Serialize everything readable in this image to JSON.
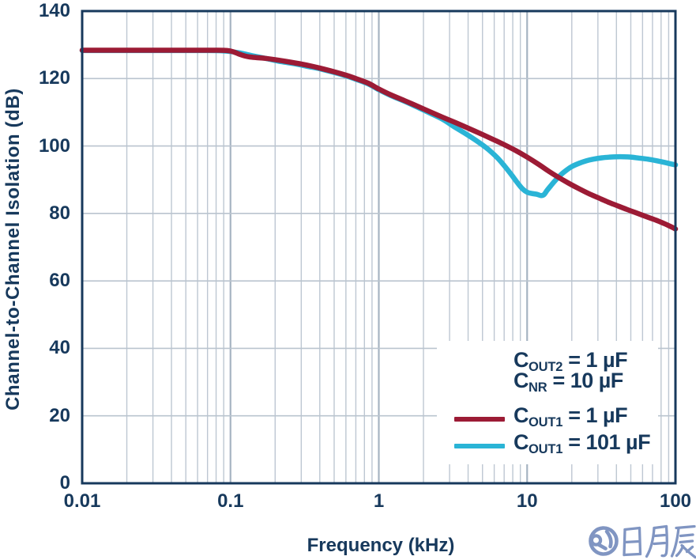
{
  "colors": {
    "background": "#ffffff",
    "axis_frame": "#17395c",
    "text": "#17395c",
    "grid_minor": "#bdc7d2",
    "grid_major": "#a6b4c2",
    "grid_horizontal": "#bac4cf",
    "legend_background": "#ffffff",
    "watermark": "#8095c2"
  },
  "chart_data": {
    "type": "line",
    "title": "",
    "xlabel": "Frequency (kHz)",
    "ylabel": "Channel-to-Channel Isolation (dB)",
    "x_scale": "log",
    "xlim": [
      0.01,
      100
    ],
    "ylim": [
      0,
      140
    ],
    "grid": {
      "x_minor_multiples": [
        2,
        3,
        4,
        5,
        6,
        7,
        8,
        9
      ],
      "x_major_decades": [
        0.1,
        1,
        10
      ],
      "y_major_step": 20
    },
    "legend_position": "lower right",
    "x_ticks": [
      {
        "v": 0.01,
        "label": "0.01"
      },
      {
        "v": 0.1,
        "label": "0.1"
      },
      {
        "v": 1,
        "label": "1"
      },
      {
        "v": 10,
        "label": "10"
      },
      {
        "v": 100,
        "label": "100"
      }
    ],
    "y_ticks": [
      {
        "v": 0,
        "label": "0"
      },
      {
        "v": 20,
        "label": "20"
      },
      {
        "v": 40,
        "label": "40"
      },
      {
        "v": 60,
        "label": "60"
      },
      {
        "v": 80,
        "label": "80"
      },
      {
        "v": 100,
        "label": "100"
      },
      {
        "v": 120,
        "label": "120"
      },
      {
        "v": 140,
        "label": "140"
      }
    ],
    "series": [
      {
        "id": "cout1-1uf",
        "label": "C_OUT1 = 1 µF",
        "color": "#9c1b35",
        "line_width": 6.5,
        "points": [
          [
            0.01,
            128.4
          ],
          [
            0.03,
            128.4
          ],
          [
            0.06,
            128.4
          ],
          [
            0.08,
            128.4
          ],
          [
            0.095,
            128.3
          ],
          [
            0.105,
            127.9
          ],
          [
            0.115,
            127.2
          ],
          [
            0.125,
            126.7
          ],
          [
            0.135,
            126.4
          ],
          [
            0.15,
            126.2
          ],
          [
            0.17,
            126.0
          ],
          [
            0.2,
            125.6
          ],
          [
            0.25,
            124.9
          ],
          [
            0.3,
            124.3
          ],
          [
            0.35,
            123.7
          ],
          [
            0.4,
            123.1
          ],
          [
            0.5,
            122.0
          ],
          [
            0.6,
            121.0
          ],
          [
            0.7,
            120.0
          ],
          [
            0.85,
            118.6
          ],
          [
            1.0,
            116.9
          ],
          [
            1.2,
            115.2
          ],
          [
            1.5,
            113.4
          ],
          [
            1.8,
            111.9
          ],
          [
            2.2,
            110.2
          ],
          [
            2.7,
            108.5
          ],
          [
            3.3,
            106.9
          ],
          [
            4.0,
            105.3
          ],
          [
            5.0,
            103.4
          ],
          [
            6.0,
            101.8
          ],
          [
            7.0,
            100.4
          ],
          [
            8.5,
            98.5
          ],
          [
            10,
            96.7
          ],
          [
            12,
            94.5
          ],
          [
            14,
            92.5
          ],
          [
            16,
            90.9
          ],
          [
            19,
            89.0
          ],
          [
            22,
            87.5
          ],
          [
            26,
            85.9
          ],
          [
            30,
            84.7
          ],
          [
            35,
            83.4
          ],
          [
            40,
            82.4
          ],
          [
            47,
            81.2
          ],
          [
            55,
            80.1
          ],
          [
            65,
            78.9
          ],
          [
            75,
            77.9
          ],
          [
            85,
            76.9
          ],
          [
            92,
            76.2
          ],
          [
            100,
            75.4
          ]
        ]
      },
      {
        "id": "cout1-101uf",
        "label": "C_OUT1 = 101 µF",
        "color": "#2ab4d6",
        "line_width": 6.5,
        "points": [
          [
            0.01,
            128.3
          ],
          [
            0.04,
            128.3
          ],
          [
            0.07,
            128.3
          ],
          [
            0.09,
            128.2
          ],
          [
            0.1,
            128.0
          ],
          [
            0.115,
            127.6
          ],
          [
            0.13,
            127.1
          ],
          [
            0.15,
            126.5
          ],
          [
            0.18,
            125.8
          ],
          [
            0.22,
            125.0
          ],
          [
            0.27,
            124.4
          ],
          [
            0.33,
            123.6
          ],
          [
            0.4,
            122.9
          ],
          [
            0.5,
            121.8
          ],
          [
            0.6,
            120.8
          ],
          [
            0.7,
            119.8
          ],
          [
            0.85,
            118.4
          ],
          [
            1.0,
            116.7
          ],
          [
            1.2,
            115.0
          ],
          [
            1.5,
            113.2
          ],
          [
            1.8,
            111.6
          ],
          [
            2.2,
            109.8
          ],
          [
            2.7,
            107.9
          ],
          [
            3.2,
            105.8
          ],
          [
            3.8,
            103.8
          ],
          [
            4.4,
            102.0
          ],
          [
            5.0,
            100.3
          ],
          [
            5.6,
            98.6
          ],
          [
            6.3,
            96.5
          ],
          [
            7.0,
            94.2
          ],
          [
            7.8,
            91.6
          ],
          [
            8.6,
            89.1
          ],
          [
            9.3,
            87.3
          ],
          [
            10.0,
            86.3
          ],
          [
            10.8,
            85.9
          ],
          [
            11.6,
            85.7
          ],
          [
            12.4,
            85.3
          ],
          [
            13.0,
            85.6
          ],
          [
            13.6,
            86.8
          ],
          [
            14.5,
            88.3
          ],
          [
            15.5,
            89.8
          ],
          [
            17,
            91.6
          ],
          [
            18.5,
            92.9
          ],
          [
            20,
            93.9
          ],
          [
            22.5,
            94.9
          ],
          [
            25,
            95.6
          ],
          [
            28,
            96.1
          ],
          [
            32,
            96.5
          ],
          [
            36,
            96.7
          ],
          [
            40,
            96.8
          ],
          [
            45,
            96.8
          ],
          [
            50,
            96.7
          ],
          [
            57,
            96.4
          ],
          [
            65,
            96.1
          ],
          [
            75,
            95.6
          ],
          [
            85,
            95.1
          ],
          [
            93,
            94.7
          ],
          [
            100,
            94.4
          ]
        ]
      }
    ]
  },
  "legend": {
    "annotations": [
      {
        "main": "C",
        "sub": "OUT2",
        "rest": " = 1 µF"
      },
      {
        "main": "C",
        "sub": "NR",
        "rest": " = 10 µF"
      }
    ],
    "entries": [
      {
        "main": "C",
        "sub": "OUT1",
        "rest": " = 1 µF",
        "series": "cout1-1uf"
      },
      {
        "main": "C",
        "sub": "OUT1",
        "rest": " = 101 µF",
        "series": "cout1-101uf"
      }
    ]
  },
  "watermark": {
    "text": "日月辰"
  }
}
